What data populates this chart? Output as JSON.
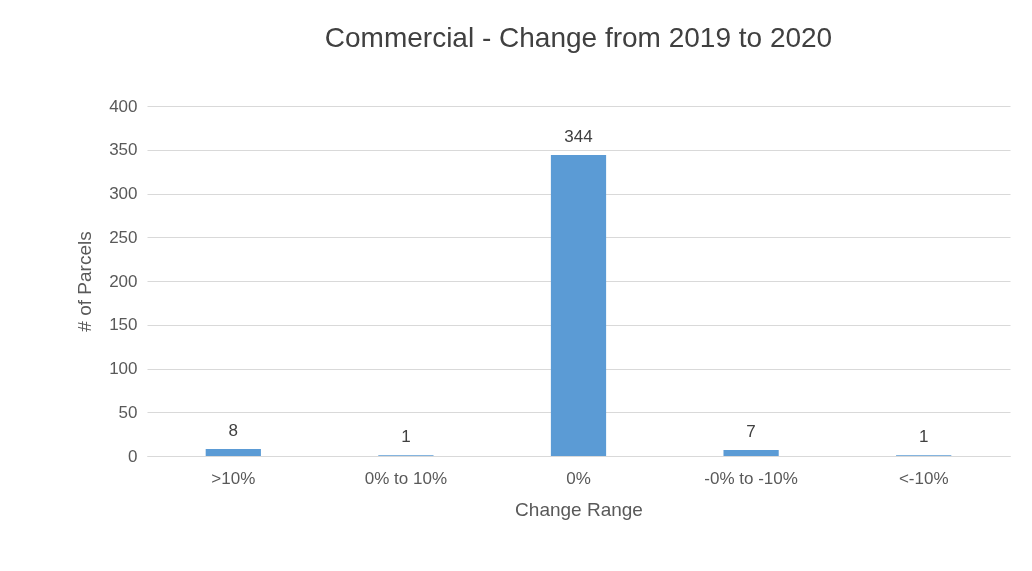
{
  "chart_data": {
    "type": "bar",
    "title": "Commercial - Change from 2019 to 2020",
    "xlabel": "Change Range",
    "ylabel": "# of Parcels",
    "categories": [
      ">10%",
      "0% to 10%",
      "0%",
      "-0% to -10%",
      "<-10%"
    ],
    "values": [
      8,
      1,
      344,
      7,
      1
    ],
    "color": "#5b9bd5",
    "ylim": [
      0,
      400
    ],
    "yticks": [
      0,
      50,
      100,
      150,
      200,
      250,
      300,
      350,
      400
    ],
    "grid": "y",
    "data_labels": true
  }
}
